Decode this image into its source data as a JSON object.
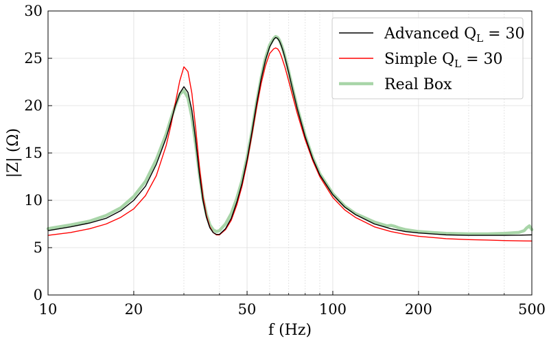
{
  "chart_data": {
    "type": "line",
    "title": "",
    "xlabel": "f (Hz)",
    "ylabel": "|Z| (Ω)",
    "xscale": "log",
    "xlim": [
      10,
      500
    ],
    "ylim": [
      0,
      30
    ],
    "xticks": [
      10,
      20,
      50,
      100,
      200,
      500
    ],
    "yticks": [
      0,
      5,
      10,
      15,
      20,
      25,
      30
    ],
    "grid": true,
    "legend_position": "top-right",
    "series": [
      {
        "name": "Advanced Q_L = 30",
        "legend_main": "Advanced Q",
        "legend_sub": "L",
        "legend_tail": " = 30",
        "color": "#000000",
        "x": [
          10,
          12,
          14,
          16,
          18,
          20,
          22,
          24,
          26,
          27,
          28,
          29,
          30,
          31,
          32,
          33,
          34,
          35,
          36,
          37,
          38,
          39,
          40,
          42,
          44,
          46,
          48,
          50,
          52,
          54,
          56,
          58,
          60,
          62,
          63,
          64,
          65,
          66,
          67,
          68,
          70,
          72,
          75,
          80,
          85,
          90,
          100,
          110,
          120,
          140,
          160,
          180,
          200,
          250,
          300,
          350,
          400,
          450,
          500
        ],
        "y": [
          6.8,
          7.2,
          7.6,
          8.1,
          8.9,
          10.0,
          11.5,
          13.8,
          16.6,
          18.3,
          20.0,
          21.3,
          22.0,
          21.4,
          19.5,
          16.3,
          12.8,
          10.0,
          8.2,
          7.1,
          6.6,
          6.4,
          6.4,
          7.0,
          8.1,
          9.8,
          11.8,
          14.3,
          17.2,
          20.2,
          22.8,
          24.8,
          26.2,
          27.0,
          27.2,
          27.1,
          26.8,
          26.3,
          25.7,
          25.0,
          23.5,
          21.9,
          19.7,
          16.7,
          14.4,
          12.7,
          10.6,
          9.3,
          8.5,
          7.5,
          7.0,
          6.7,
          6.55,
          6.35,
          6.3,
          6.3,
          6.3,
          6.32,
          6.35
        ]
      },
      {
        "name": "Simple Q_L = 30",
        "legend_main": "Simple Q",
        "legend_sub": "L",
        "legend_tail": " = 30",
        "color": "#ff0000",
        "x": [
          10,
          12,
          14,
          16,
          18,
          20,
          22,
          24,
          26,
          27,
          28,
          29,
          30,
          31,
          32,
          33,
          34,
          35,
          36,
          37,
          38,
          39,
          40,
          42,
          44,
          46,
          48,
          50,
          52,
          54,
          56,
          58,
          60,
          62,
          63,
          64,
          65,
          66,
          67,
          68,
          70,
          72,
          75,
          80,
          85,
          90,
          100,
          110,
          120,
          140,
          160,
          180,
          200,
          250,
          300,
          350,
          400,
          450,
          500
        ],
        "y": [
          6.3,
          6.6,
          7.0,
          7.5,
          8.2,
          9.1,
          10.5,
          12.6,
          15.8,
          17.9,
          20.3,
          22.6,
          24.1,
          23.6,
          21.3,
          17.6,
          13.6,
          10.4,
          8.4,
          7.2,
          6.6,
          6.35,
          6.35,
          6.9,
          7.9,
          9.5,
          11.5,
          14.0,
          16.9,
          19.8,
          22.3,
          24.2,
          25.5,
          26.0,
          26.1,
          26.0,
          25.7,
          25.2,
          24.6,
          24.0,
          22.6,
          21.2,
          19.2,
          16.4,
          14.2,
          12.5,
          10.3,
          9.0,
          8.2,
          7.2,
          6.7,
          6.4,
          6.2,
          5.95,
          5.85,
          5.8,
          5.75,
          5.72,
          5.7
        ]
      },
      {
        "name": "Real Box",
        "legend_main": "Real Box",
        "legend_sub": "",
        "legend_tail": "",
        "color": "#a8d5a8",
        "x": [
          10,
          12,
          14,
          16,
          18,
          20,
          22,
          24,
          26,
          27,
          28,
          29,
          30,
          31,
          32,
          33,
          34,
          35,
          36,
          37,
          38,
          39,
          40,
          42,
          44,
          46,
          48,
          50,
          52,
          54,
          56,
          58,
          60,
          62,
          63,
          64,
          65,
          66,
          67,
          68,
          70,
          72,
          75,
          80,
          85,
          90,
          100,
          110,
          120,
          140,
          155,
          160,
          165,
          170,
          180,
          200,
          250,
          300,
          350,
          400,
          450,
          470,
          480,
          490,
          500
        ],
        "y": [
          7.0,
          7.4,
          7.8,
          8.4,
          9.2,
          10.4,
          12.0,
          14.3,
          17.0,
          18.6,
          20.0,
          21.2,
          21.6,
          20.8,
          18.8,
          15.9,
          12.8,
          10.2,
          8.5,
          7.4,
          6.9,
          6.7,
          6.8,
          7.5,
          8.6,
          10.2,
          12.1,
          14.5,
          17.3,
          20.3,
          22.9,
          25.0,
          26.4,
          27.1,
          27.3,
          27.2,
          26.9,
          26.4,
          25.8,
          25.1,
          23.6,
          22.0,
          19.8,
          16.8,
          14.5,
          12.8,
          10.7,
          9.4,
          8.6,
          7.7,
          7.3,
          7.35,
          7.25,
          7.1,
          6.9,
          6.7,
          6.5,
          6.45,
          6.45,
          6.5,
          6.6,
          6.8,
          7.1,
          7.3,
          6.9
        ]
      }
    ]
  }
}
